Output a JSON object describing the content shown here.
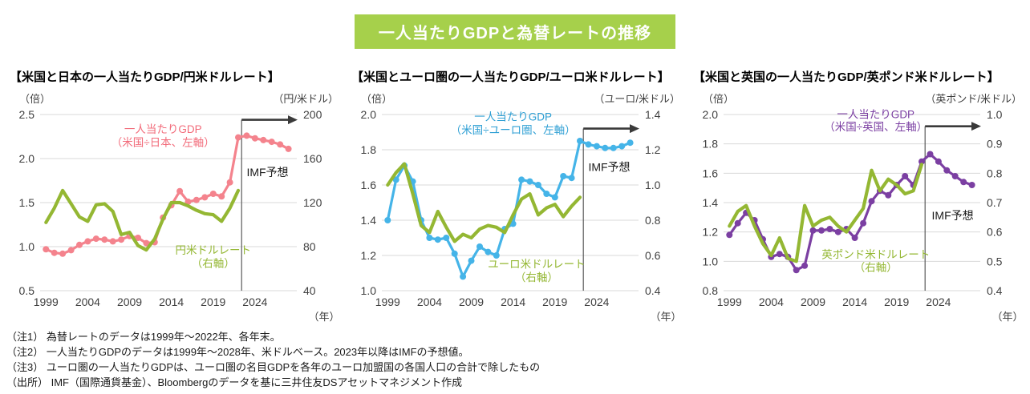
{
  "header": {
    "title": "一人当たりGDPと為替レートの推移",
    "bar_color": "#a6d04b",
    "text_color": "#ffffff"
  },
  "chart_data": [
    {
      "type": "line",
      "id": "us-japan",
      "title": "【米国と日本の一人当たりGDP/円米ドルレート】",
      "left_axis": {
        "unit": "（倍）",
        "min": 0.5,
        "max": 2.5,
        "tick_labels": [
          "2.5",
          "2.0",
          "1.5",
          "1.0",
          "0.5"
        ]
      },
      "right_axis": {
        "unit": "（円/米ドル）",
        "min": 40,
        "max": 200,
        "tick_labels": [
          "200",
          "160",
          "120",
          "80",
          "40"
        ]
      },
      "x_axis": {
        "unit": "（年）",
        "min_year": 1998.3,
        "max_year": 2029.0,
        "tick_labels": [
          "1999",
          "2004",
          "2009",
          "2014",
          "2019",
          "2024"
        ]
      },
      "grid": true,
      "legend_position": "inline-annotations",
      "series": [
        {
          "key": "gdp-ratio",
          "name": "一人当たりGDP（米国÷日本、左軸）",
          "axis": "left",
          "color": "#f4838d",
          "markers": true,
          "start_year": 1999,
          "values": [
            0.97,
            0.93,
            0.92,
            0.96,
            1.02,
            1.06,
            1.09,
            1.08,
            1.06,
            1.08,
            1.12,
            1.1,
            1.04,
            1.05,
            1.33,
            1.47,
            1.63,
            1.51,
            1.53,
            1.56,
            1.6,
            1.57,
            1.73,
            2.24,
            2.26,
            2.23,
            2.21,
            2.19,
            2.16,
            2.11
          ]
        },
        {
          "key": "fx-rate",
          "name": "円米ドルレート（右軸）",
          "axis": "right",
          "color": "#94b733",
          "markers": false,
          "start_year": 1999,
          "values": [
            102,
            115,
            131,
            119,
            107,
            103,
            118,
            119,
            112,
            91,
            93,
            81,
            77,
            87,
            105,
            120,
            120,
            117,
            113,
            110,
            109,
            103,
            115,
            131
          ]
        }
      ],
      "series_labels": [
        {
          "text_lines": [
            "一人当たりGDP",
            "（米国÷日本、左軸）"
          ],
          "color": "#f26b7a",
          "year": 2013,
          "values_left": [
            2.29,
            2.14
          ]
        },
        {
          "text_lines": [
            "円米ドルレート",
            "（右軸）"
          ],
          "color": "#94b733",
          "year": 2019,
          "values_left": [
            0.92,
            0.77
          ]
        }
      ],
      "forecast": {
        "label": "IMF予想",
        "line_year": 2022.4,
        "arrow_value_left": 2.44,
        "label_year": 2023.0,
        "label_value_left": 1.8
      }
    },
    {
      "type": "line",
      "id": "us-eurozone",
      "title": "【米国とユーロ圏の一人当たりGDP/ユーロ米ドルレート】",
      "left_axis": {
        "unit": "（倍）",
        "min": 1.0,
        "max": 2.0,
        "tick_labels": [
          "2.0",
          "1.8",
          "1.6",
          "1.4",
          "1.2",
          "1.0"
        ]
      },
      "right_axis": {
        "unit": "（ユーロ/米ドル）",
        "min": 0.4,
        "max": 1.4,
        "tick_labels": [
          "1.4",
          "1.2",
          "1.0",
          "0.8",
          "0.6",
          "0.4"
        ]
      },
      "x_axis": {
        "unit": "（年）",
        "min_year": 1998.3,
        "max_year": 2029.0,
        "tick_labels": [
          "1999",
          "2004",
          "2009",
          "2014",
          "2019",
          "2024"
        ]
      },
      "grid": true,
      "legend_position": "inline-annotations",
      "series": [
        {
          "key": "gdp-ratio",
          "name": "一人当たりGDP（米国÷ユーロ圏、左軸）",
          "axis": "left",
          "color": "#45b4e8",
          "markers": true,
          "start_year": 1999,
          "values": [
            1.4,
            1.63,
            1.71,
            1.62,
            1.4,
            1.3,
            1.29,
            1.3,
            1.21,
            1.08,
            1.17,
            1.25,
            1.22,
            1.2,
            1.35,
            1.38,
            1.63,
            1.62,
            1.6,
            1.55,
            1.53,
            1.65,
            1.64,
            1.85,
            1.83,
            1.82,
            1.81,
            1.81,
            1.82,
            1.84
          ]
        },
        {
          "key": "fx-rate",
          "name": "ユーロ米ドルレート（右軸）",
          "axis": "right",
          "color": "#94b733",
          "markers": false,
          "start_year": 1999,
          "values": [
            1.0,
            1.07,
            1.12,
            0.95,
            0.77,
            0.73,
            0.85,
            0.76,
            0.68,
            0.72,
            0.7,
            0.75,
            0.77,
            0.76,
            0.73,
            0.83,
            0.92,
            0.95,
            0.83,
            0.87,
            0.89,
            0.82,
            0.88,
            0.93
          ]
        }
      ],
      "series_labels": [
        {
          "text_lines": [
            "一人当たりGDP",
            "（米国÷ユーロ圏、左軸）"
          ],
          "color": "#2e9fd4",
          "year": 2014,
          "values_left": [
            1.965,
            1.89
          ]
        },
        {
          "text_lines": [
            "ユーロ米ドルレート",
            "（右軸）"
          ],
          "color": "#94b733",
          "year": 2016.8,
          "values_left": [
            1.13,
            1.055
          ]
        }
      ],
      "forecast": {
        "label": "IMF予想",
        "line_year": 2022.4,
        "arrow_value_left": 1.92,
        "label_year": 2023.0,
        "label_value_left": 1.68
      }
    },
    {
      "type": "line",
      "id": "us-uk",
      "title": "【米国と英国の一人当たりGDP/英ポンド米ドルレート】",
      "left_axis": {
        "unit": "（倍）",
        "min": 0.8,
        "max": 2.0,
        "tick_labels": [
          "2.0",
          "1.8",
          "1.6",
          "1.4",
          "1.2",
          "1.0",
          "0.8"
        ]
      },
      "right_axis": {
        "unit": "（英ポンド/米ドル）",
        "min": 0.4,
        "max": 1.0,
        "tick_labels": [
          "1.0",
          "0.9",
          "0.8",
          "0.7",
          "0.6",
          "0.5",
          "0.4"
        ]
      },
      "x_axis": {
        "unit": "（年）",
        "min_year": 1998.3,
        "max_year": 2029.0,
        "tick_labels": [
          "1999",
          "2004",
          "2009",
          "2014",
          "2019",
          "2024"
        ]
      },
      "grid": true,
      "legend_position": "inline-annotations",
      "series": [
        {
          "key": "gdp-ratio",
          "name": "一人当たりGDP（米国÷英国、左軸）",
          "axis": "left",
          "color": "#7b3fa2",
          "markers": true,
          "start_year": 1999,
          "values": [
            1.18,
            1.26,
            1.33,
            1.28,
            1.15,
            1.03,
            1.05,
            1.03,
            0.94,
            0.97,
            1.21,
            1.21,
            1.22,
            1.2,
            1.22,
            1.16,
            1.26,
            1.41,
            1.48,
            1.45,
            1.52,
            1.58,
            1.52,
            1.68,
            1.73,
            1.68,
            1.62,
            1.58,
            1.54,
            1.52
          ]
        },
        {
          "key": "fx-rate",
          "name": "英ポンド米ドルレート（右軸）",
          "axis": "right",
          "color": "#94b733",
          "markers": false,
          "start_year": 1999,
          "values": [
            0.62,
            0.67,
            0.69,
            0.62,
            0.56,
            0.52,
            0.58,
            0.51,
            0.5,
            0.69,
            0.62,
            0.64,
            0.65,
            0.62,
            0.6,
            0.64,
            0.68,
            0.81,
            0.74,
            0.78,
            0.76,
            0.73,
            0.74,
            0.83
          ]
        }
      ],
      "series_labels": [
        {
          "text_lines": [
            "一人当たりGDP",
            "（米国÷英国、左軸）"
          ],
          "color": "#7b3fa2",
          "year": 2016.5,
          "values_left": [
            1.975,
            1.89
          ]
        },
        {
          "text_lines": [
            "英ポンド米ドルレート",
            "（右軸）"
          ],
          "color": "#94b733",
          "year": 2016.5,
          "values_left": [
            1.02,
            0.935
          ]
        }
      ],
      "forecast": {
        "label": "IMF予想",
        "line_year": 2022.4,
        "arrow_value_left": 1.92,
        "label_year": 2023.2,
        "label_value_left": 1.285
      }
    }
  ],
  "notes": [
    "（注1） 為替レートのデータは1999年～2022年、各年末。",
    "（注2） 一人当たりGDPのデータは1999年～2028年、米ドルベース。2023年以降はIMFの予想値。",
    "（注3） ユーロ圏の一人当たりGDPは、ユーロ圏の名目GDPを各年のユーロ加盟国の各国人口の合計で除したもの",
    "（出所） IMF（国際通貨基金）、Bloombergのデータを基に三井住友DSアセットマネジメント作成"
  ],
  "style_colors": {
    "gridline": "#d9d9d9",
    "axis_text": "#404040",
    "forecast_line": "#595959",
    "arrow": "#3a3a3a"
  }
}
